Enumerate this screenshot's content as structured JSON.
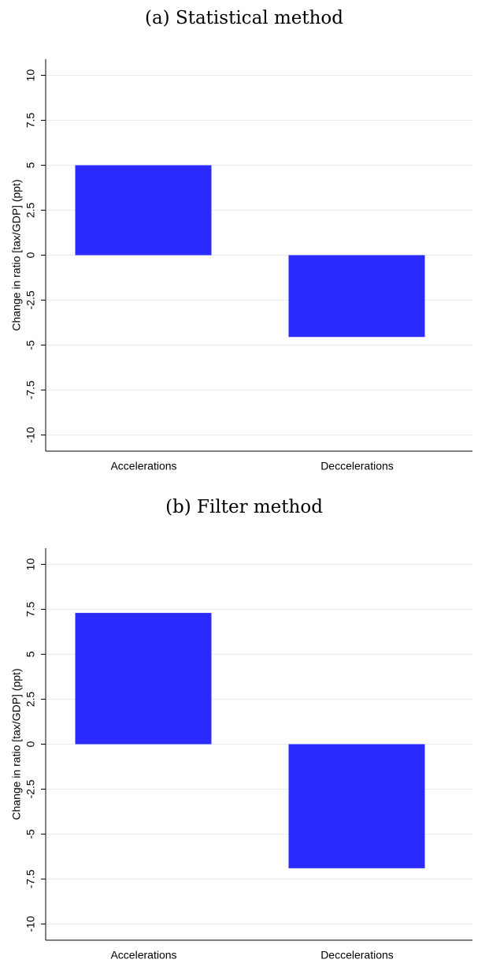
{
  "chart_data": [
    {
      "type": "bar",
      "title": "(a) Statistical method",
      "y_label": "Change in ratio [tax/GDP] (ppt)",
      "categories": [
        "Accelerations",
        "Deccelerations"
      ],
      "values": [
        5.0,
        -4.55
      ],
      "color": "#2b2bff",
      "ylim": [
        -10.9,
        10.9
      ],
      "yticks": [
        -10,
        -7.5,
        -5,
        -2.5,
        0,
        2.5,
        5,
        7.5,
        10
      ],
      "grid": true
    },
    {
      "type": "bar",
      "title": "(b) Filter method",
      "y_label": "Change in ratio [tax/GDP] (ppt)",
      "categories": [
        "Accelerations",
        "Deccelerations"
      ],
      "values": [
        7.3,
        -6.9
      ],
      "color": "#2b2bff",
      "ylim": [
        -10.9,
        10.9
      ],
      "yticks": [
        -10,
        -7.5,
        -5,
        -2.5,
        0,
        2.5,
        5,
        7.5,
        10
      ],
      "grid": true
    }
  ]
}
